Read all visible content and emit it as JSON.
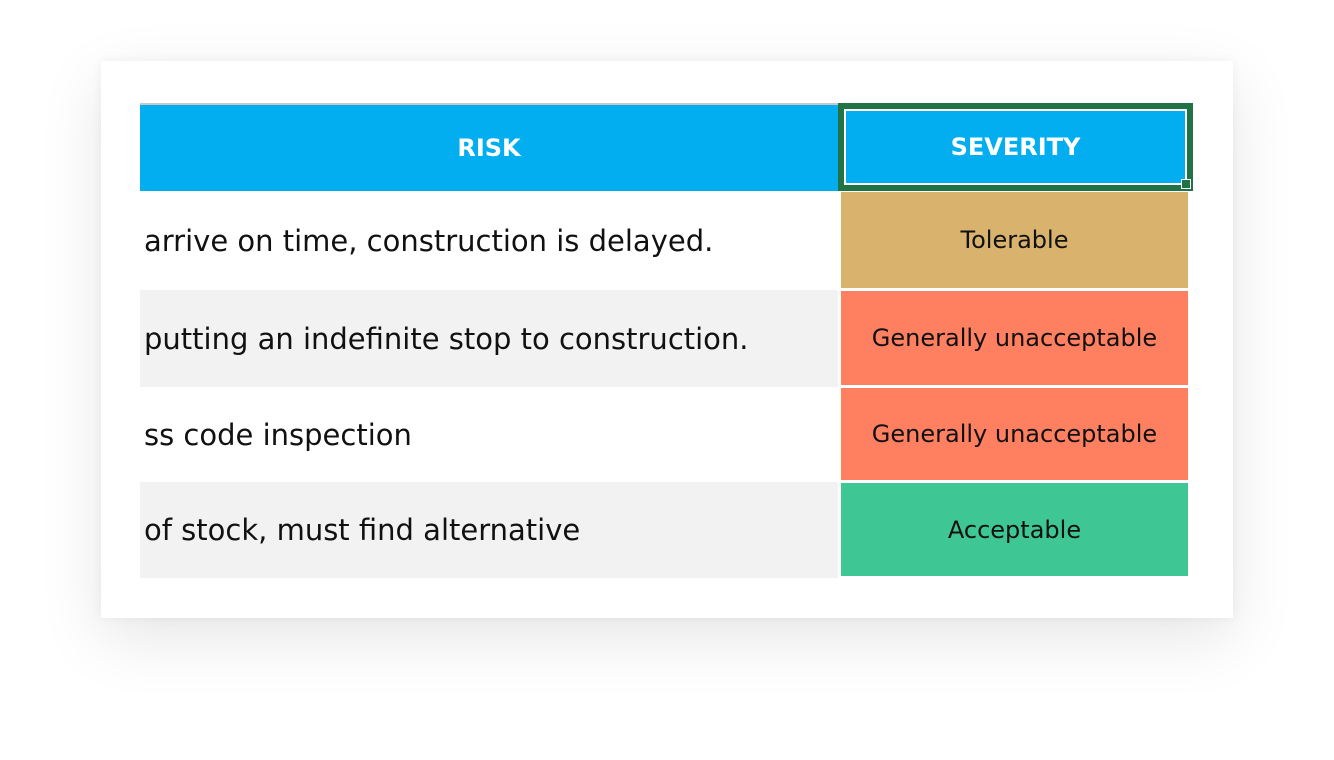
{
  "table": {
    "headers": {
      "risk": "RISK",
      "severity": "SEVERITY"
    },
    "rows": [
      {
        "risk": "arrive on time, construction is delayed.",
        "severity": "Tolerable",
        "color": "#d9b26d",
        "bg": "#ffffff"
      },
      {
        "risk": "putting an indefinite stop to construction.",
        "severity": "Generally unacceptable",
        "color": "#ff8061",
        "bg": "#f2f2f2"
      },
      {
        "risk": "ss code inspection",
        "severity": "Generally unacceptable",
        "color": "#ff8061",
        "bg": "#ffffff"
      },
      {
        "risk": "of stock, must find alternative",
        "severity": "Acceptable",
        "color": "#3ec795",
        "bg": "#f2f2f2"
      }
    ]
  },
  "colors": {
    "header": "#02aeef",
    "selection": "#217346"
  }
}
